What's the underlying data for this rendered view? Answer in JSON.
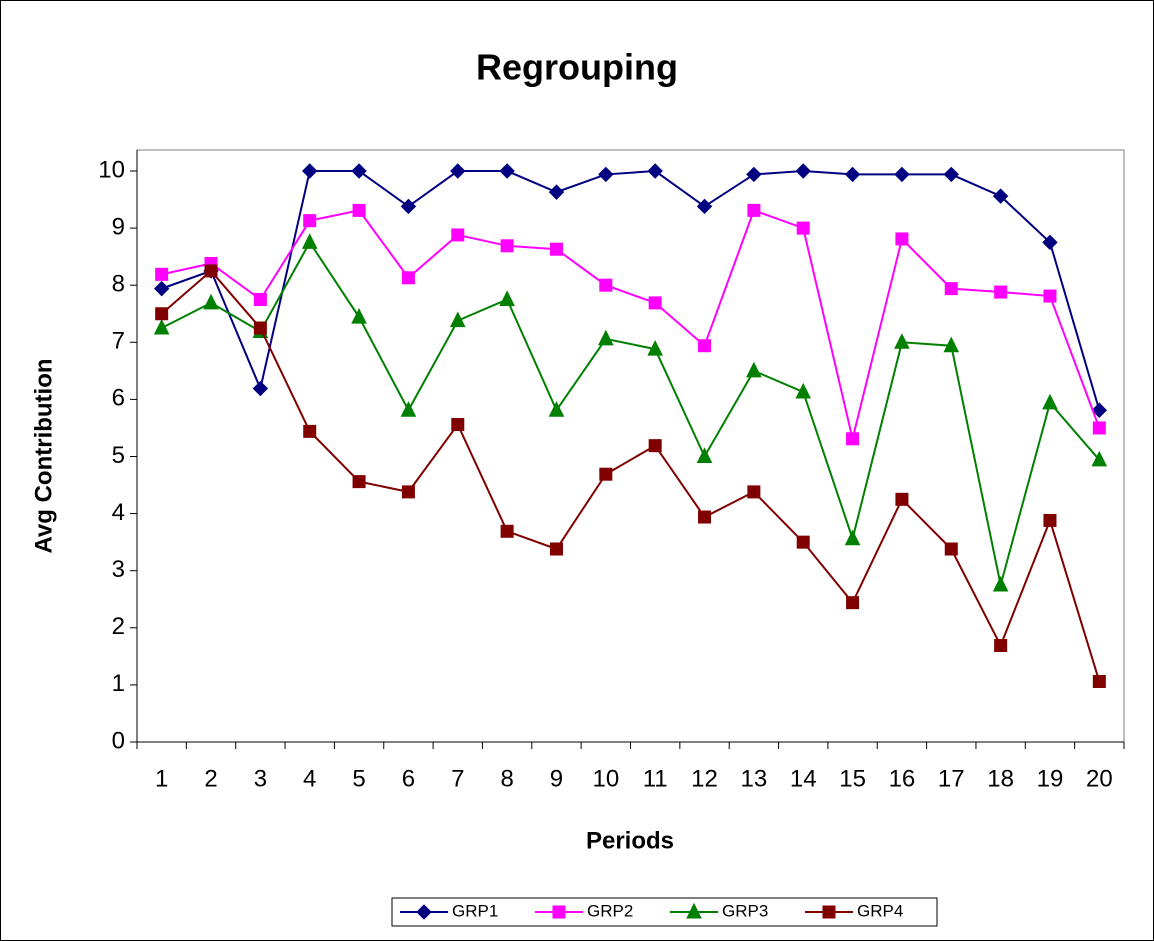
{
  "chart_data": {
    "type": "line",
    "title": "Regrouping",
    "x_label": "Periods",
    "y_label": "Avg Contribution",
    "categories": [
      "1",
      "2",
      "3",
      "4",
      "5",
      "6",
      "7",
      "8",
      "9",
      "10",
      "11",
      "12",
      "13",
      "14",
      "15",
      "16",
      "17",
      "18",
      "19",
      "20"
    ],
    "series": [
      {
        "name": "GRP1",
        "color": "#000080",
        "marker": "diamond",
        "values": [
          7.94,
          8.25,
          6.19,
          10,
          10,
          9.38,
          10,
          10,
          9.63,
          9.94,
          10,
          9.38,
          9.94,
          10,
          9.94,
          9.94,
          9.94,
          9.56,
          8.75,
          5.81
        ]
      },
      {
        "name": "GRP2",
        "color": "#ff00ff",
        "marker": "square",
        "values": [
          8.19,
          8.38,
          7.75,
          9.13,
          9.31,
          8.13,
          8.88,
          8.69,
          8.63,
          8.0,
          7.69,
          6.94,
          9.31,
          9.0,
          5.31,
          8.81,
          7.94,
          7.88,
          7.81,
          5.5
        ]
      },
      {
        "name": "GRP3",
        "color": "#008000",
        "marker": "triangle",
        "values": [
          7.25,
          7.69,
          7.19,
          8.75,
          7.44,
          5.81,
          7.38,
          7.75,
          5.81,
          7.06,
          6.88,
          5.0,
          6.5,
          6.13,
          3.56,
          7.0,
          6.94,
          2.75,
          5.94,
          4.94
        ]
      },
      {
        "name": "GRP4",
        "color": "#800000",
        "marker": "square",
        "values": [
          7.5,
          8.25,
          7.25,
          5.44,
          4.56,
          4.38,
          5.56,
          3.69,
          3.38,
          4.69,
          5.19,
          3.94,
          4.38,
          3.5,
          2.44,
          4.25,
          3.38,
          1.69,
          3.88,
          1.06
        ]
      }
    ],
    "ylim": [
      0,
      10
    ],
    "yticks": [
      0,
      1,
      2,
      3,
      4,
      5,
      6,
      7,
      8,
      9,
      10
    ],
    "grid": false,
    "legend": "bottom"
  }
}
